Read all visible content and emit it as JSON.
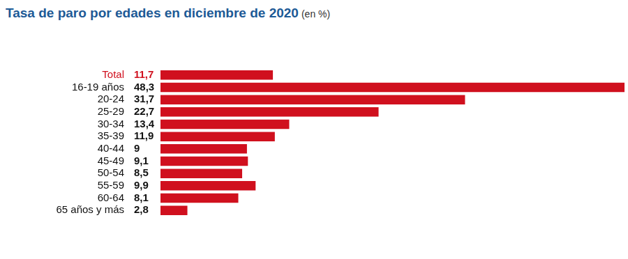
{
  "chart_data": {
    "type": "bar",
    "orientation": "horizontal",
    "title": "Tasa de paro por edades en diciembre de 2020",
    "subtitle": "(en %)",
    "categories": [
      "Total",
      "16-19 años",
      "20-24",
      "25-29",
      "30-34",
      "35-39",
      "40-44",
      "45-49",
      "50-54",
      "55-59",
      "60-64",
      "65 años y más"
    ],
    "values": [
      11.7,
      48.3,
      31.7,
      22.7,
      13.4,
      11.9,
      9,
      9.1,
      8.5,
      9.9,
      8.1,
      2.8
    ],
    "value_labels": [
      "11,7",
      "48,3",
      "31,7",
      "22,7",
      "13,4",
      "11,9",
      "9",
      "9,1",
      "8,5",
      "9,9",
      "8,1",
      "2,8"
    ],
    "color": "#d0101e",
    "xlim": [
      0,
      48.3
    ],
    "grid": false,
    "data_labels": true,
    "tick_labels": "y"
  }
}
